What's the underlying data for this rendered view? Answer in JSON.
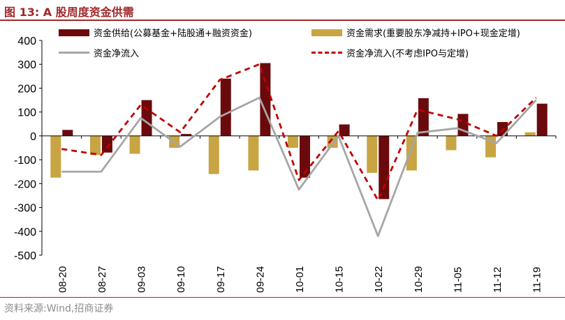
{
  "figure": {
    "title": "图 13: A 股周度资金供需",
    "source": "资料来源:Wind,招商证券"
  },
  "chart_data": {
    "type": "bar",
    "categories": [
      "08-20",
      "08-27",
      "09-03",
      "09-10",
      "09-17",
      "09-24",
      "10-01",
      "10-15",
      "10-22",
      "10-29",
      "11-05",
      "11-12",
      "11-19"
    ],
    "ylim": [
      -500,
      400
    ],
    "yticks": [
      400,
      300,
      200,
      100,
      0,
      -100,
      -200,
      -300,
      -400,
      -500
    ],
    "legend_position": "top",
    "series": [
      {
        "name": "资金供给(公募基金+陆股通+融资资金)",
        "kind": "bar",
        "color": "#6b0a0c",
        "values": [
          25,
          -70,
          150,
          8,
          240,
          305,
          -175,
          48,
          -265,
          158,
          92,
          58,
          135
        ]
      },
      {
        "name": "资金需求(重要股东净减持+IPO+现金定增)",
        "kind": "bar",
        "color": "#c8a443",
        "values": [
          -175,
          -80,
          -75,
          -50,
          -160,
          -145,
          -50,
          -50,
          -155,
          -145,
          -60,
          -90,
          15
        ]
      },
      {
        "name": "资金净流入",
        "kind": "line",
        "color": "#a6a6a6",
        "values": [
          -150,
          -150,
          75,
          -45,
          80,
          160,
          -225,
          0,
          -420,
          13,
          32,
          -30,
          150
        ]
      },
      {
        "name": "资金净流入(不考虑IPO与定增)",
        "kind": "dashed",
        "color": "#c00000",
        "values": [
          -55,
          -80,
          130,
          15,
          235,
          300,
          -185,
          20,
          -270,
          110,
          70,
          0,
          160
        ]
      }
    ]
  }
}
